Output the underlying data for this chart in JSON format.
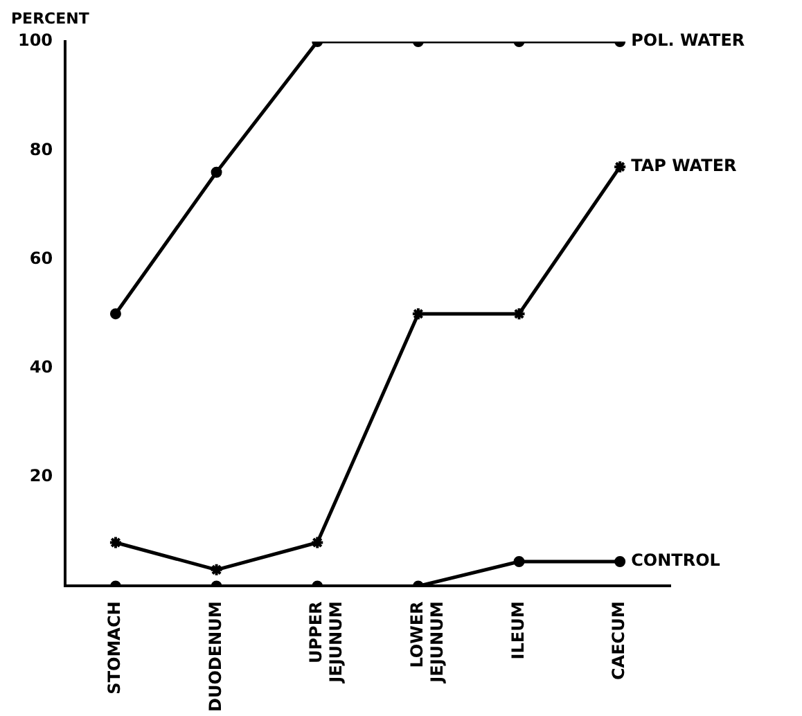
{
  "chart_data": {
    "type": "line",
    "ylabel": "PERCENT",
    "categories": [
      "STOMACH",
      "DUODENUM",
      "UPPER JEJUNUM",
      "LOWER JEJUNUM",
      "ILEUM",
      "CAECUM"
    ],
    "series": [
      {
        "name": "POL. WATER",
        "color": "#000000",
        "marker": "circle",
        "values": [
          50,
          76,
          100,
          100,
          100,
          100
        ]
      },
      {
        "name": "TAP WATER",
        "color": "#000000",
        "marker": "cross",
        "values": [
          8,
          3,
          8,
          50,
          50,
          77
        ]
      },
      {
        "name": "CONTROL",
        "color": "#000000",
        "marker": "circle",
        "values": [
          0,
          0,
          0,
          0,
          4.5,
          4.5
        ]
      }
    ],
    "ylim": [
      0,
      100
    ],
    "yticks": [
      20,
      40,
      60,
      80,
      100
    ],
    "grid": false,
    "legend": false
  }
}
